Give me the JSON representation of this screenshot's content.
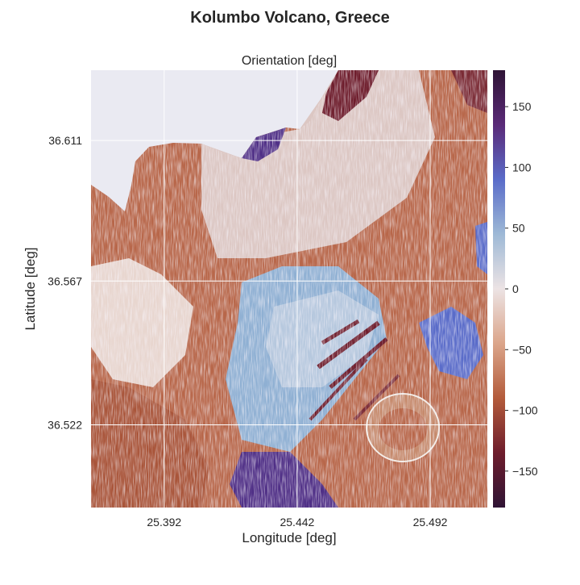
{
  "figure": {
    "suptitle": "Kolumbo Volcano, Greece"
  },
  "chart_data": {
    "type": "heatmap",
    "title": "Orientation [deg]",
    "xlabel": "Longitude [deg]",
    "ylabel": "Latitude [deg]",
    "xlim": [
      25.3645,
      25.5135
    ],
    "ylim": [
      36.4961,
      36.633
    ],
    "xticks": [
      25.392,
      25.442,
      25.492
    ],
    "xtick_labels": [
      "25.392",
      "25.442",
      "25.492"
    ],
    "yticks": [
      36.522,
      36.567,
      36.611
    ],
    "ytick_labels": [
      "36.522",
      "36.567",
      "36.611"
    ],
    "colorbar": {
      "label": "",
      "colormap": "twilight_shifted",
      "range": [
        -180,
        180
      ],
      "ticks": [
        150,
        100,
        50,
        0,
        -50,
        -100,
        -150
      ],
      "tick_labels": [
        "150",
        "100",
        "50",
        "0",
        "−50",
        "−100",
        "−150"
      ],
      "stops": [
        "#2f1435",
        "#5a2a78",
        "#5a6cc9",
        "#9eb9d6",
        "#ece3e4",
        "#dba58a",
        "#b35b3b",
        "#6e1d2c",
        "#2f1435"
      ]
    },
    "grid": true,
    "no_data_color": "#eaeaf2",
    "colors": {
      "ocean_red": "#b8674a",
      "dark_red": "#6e1d2c",
      "steel_blue": "#8fb0d3",
      "violet": "#4f2f86",
      "pale": "#e8d6cf"
    }
  }
}
